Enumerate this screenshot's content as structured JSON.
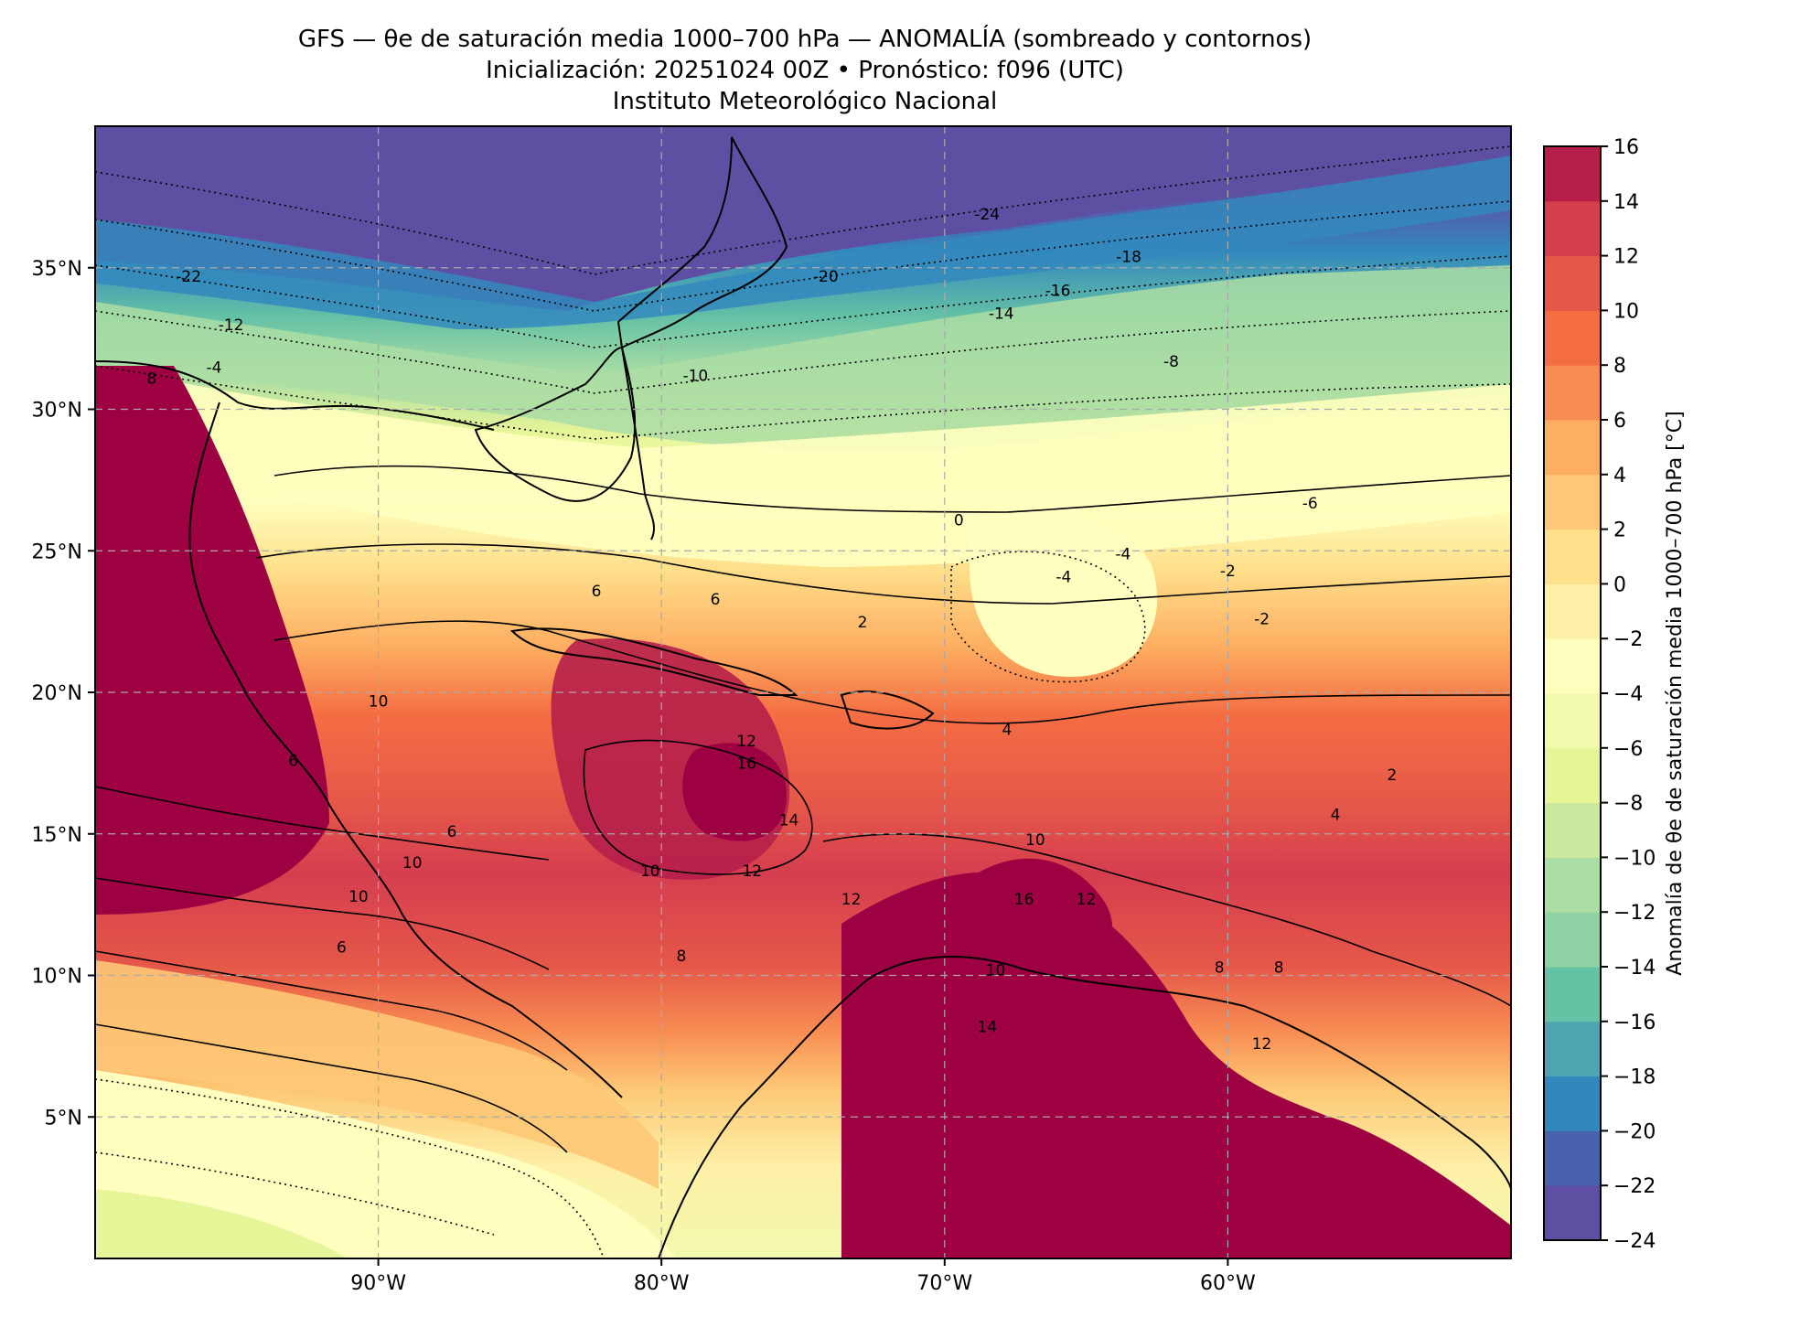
{
  "header": {
    "title_line1": "GFS — θe de saturación media 1000–700 hPa — ANOMALÍA (sombreado y contornos)",
    "title_line2": "Inicialización: 20251024 00Z   •   Pronóstico: f096 (UTC)",
    "title_line3": "Instituto Meteorológico Nacional"
  },
  "map": {
    "type": "filled-contour-map",
    "lon_range": [
      -100,
      -50
    ],
    "lat_range": [
      0,
      40
    ],
    "x_ticks": [
      {
        "value": -90,
        "label": "90°W"
      },
      {
        "value": -80,
        "label": "80°W"
      },
      {
        "value": -70,
        "label": "70°W"
      },
      {
        "value": -60,
        "label": "60°W"
      }
    ],
    "y_ticks": [
      {
        "value": 35,
        "label": "35°N"
      },
      {
        "value": 30,
        "label": "30°N"
      },
      {
        "value": 25,
        "label": "25°N"
      },
      {
        "value": 20,
        "label": "20°N"
      },
      {
        "value": 15,
        "label": "15°N"
      },
      {
        "value": 10,
        "label": "10°N"
      },
      {
        "value": 5,
        "label": "5°N"
      }
    ],
    "gridlines": true,
    "contour_labels": [
      {
        "text": "-24",
        "lon": -68.5,
        "lat": 36.7
      },
      {
        "text": "-22",
        "lon": -96.7,
        "lat": 34.5
      },
      {
        "text": "-20",
        "lon": -74.2,
        "lat": 34.5
      },
      {
        "text": "-18",
        "lon": -63.5,
        "lat": 35.2
      },
      {
        "text": "-16",
        "lon": -66.0,
        "lat": 34.0
      },
      {
        "text": "-14",
        "lon": -68.0,
        "lat": 33.2
      },
      {
        "text": "-12",
        "lon": -95.2,
        "lat": 32.8
      },
      {
        "text": "-10",
        "lon": -78.8,
        "lat": 31.0
      },
      {
        "text": "-8",
        "lon": -62.0,
        "lat": 31.5
      },
      {
        "text": "-6",
        "lon": -57.1,
        "lat": 26.5
      },
      {
        "text": "-4",
        "lon": -95.8,
        "lat": 31.3
      },
      {
        "text": "-4",
        "lon": -65.8,
        "lat": 23.9
      },
      {
        "text": "-4",
        "lon": -63.7,
        "lat": 24.7
      },
      {
        "text": "-2",
        "lon": -60.0,
        "lat": 24.1
      },
      {
        "text": "-2",
        "lon": -58.8,
        "lat": 22.4
      },
      {
        "text": "0",
        "lon": -69.5,
        "lat": 25.9
      },
      {
        "text": "2",
        "lon": -72.9,
        "lat": 22.3
      },
      {
        "text": "2",
        "lon": -54.2,
        "lat": 16.9
      },
      {
        "text": "4",
        "lon": -56.2,
        "lat": 15.5
      },
      {
        "text": "4",
        "lon": -67.8,
        "lat": 18.5
      },
      {
        "text": "6",
        "lon": -82.3,
        "lat": 23.4
      },
      {
        "text": "6",
        "lon": -78.1,
        "lat": 23.1
      },
      {
        "text": "6",
        "lon": -91.3,
        "lat": 10.8
      },
      {
        "text": "6",
        "lon": -87.4,
        "lat": 14.9
      },
      {
        "text": "6",
        "lon": -93.0,
        "lat": 17.4
      },
      {
        "text": "8",
        "lon": -98.0,
        "lat": 30.9
      },
      {
        "text": "8",
        "lon": -79.3,
        "lat": 10.5
      },
      {
        "text": "8",
        "lon": -58.2,
        "lat": 10.1
      },
      {
        "text": "8",
        "lon": -60.3,
        "lat": 10.1
      },
      {
        "text": "10",
        "lon": -90.0,
        "lat": 19.5
      },
      {
        "text": "10",
        "lon": -90.7,
        "lat": 12.6
      },
      {
        "text": "10",
        "lon": -88.8,
        "lat": 13.8
      },
      {
        "text": "10",
        "lon": -80.4,
        "lat": 13.5
      },
      {
        "text": "10",
        "lon": -66.8,
        "lat": 14.6
      },
      {
        "text": "10",
        "lon": -68.2,
        "lat": 10.0
      },
      {
        "text": "12",
        "lon": -77.0,
        "lat": 18.1
      },
      {
        "text": "12",
        "lon": -76.8,
        "lat": 13.5
      },
      {
        "text": "12",
        "lon": -73.3,
        "lat": 12.5
      },
      {
        "text": "12",
        "lon": -65.0,
        "lat": 12.5
      },
      {
        "text": "12",
        "lon": -58.8,
        "lat": 7.4
      },
      {
        "text": "14",
        "lon": -75.5,
        "lat": 15.3
      },
      {
        "text": "14",
        "lon": -68.5,
        "lat": 8.0
      },
      {
        "text": "16",
        "lon": -77.0,
        "lat": 17.3
      },
      {
        "text": "16",
        "lon": -67.2,
        "lat": 12.5
      }
    ]
  },
  "colorbar": {
    "label": "Anomalía de θe de saturación media 1000–700 hPa [°C]",
    "levels": [
      -24,
      -22,
      -20,
      -18,
      -16,
      -14,
      -12,
      -10,
      -8,
      -6,
      -4,
      -2,
      0,
      2,
      4,
      6,
      8,
      10,
      12,
      14,
      16
    ],
    "tick_labels": [
      "−24",
      "−22",
      "−20",
      "−18",
      "−16",
      "−14",
      "−12",
      "−10",
      "−8",
      "−6",
      "−4",
      "−2",
      "0",
      "2",
      "4",
      "6",
      "8",
      "10",
      "12",
      "14",
      "16"
    ],
    "colors": [
      "#5e4fa2",
      "#4862ae",
      "#3288bd",
      "#4ea5b1",
      "#66c2a5",
      "#8fd2a4",
      "#abdda4",
      "#cbe99e",
      "#e6f598",
      "#f2f9ad",
      "#ffffbf",
      "#fef0a7",
      "#fee08b",
      "#fdc875",
      "#fdae61",
      "#f88d52",
      "#f46d43",
      "#e55749",
      "#d53e4f",
      "#b61f4a",
      "#9e0142"
    ]
  }
}
